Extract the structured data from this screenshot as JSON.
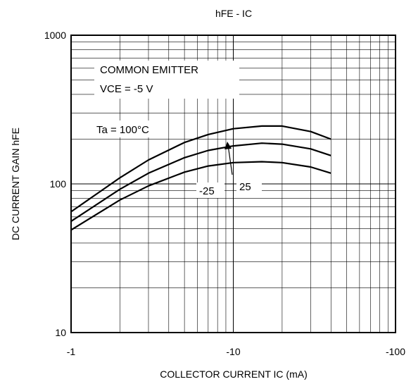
{
  "chart_data": {
    "type": "line",
    "title": "hFE - IC",
    "xlabel": "COLLECTOR CURRENT   IC (mA)",
    "ylabel": "DC CURRENT GAIN   hFE",
    "xscale": "log",
    "yscale": "log",
    "xlim": [
      -1,
      -100
    ],
    "ylim": [
      10,
      1000
    ],
    "x_ticks": [
      "-1",
      "-10",
      "-100"
    ],
    "y_ticks": [
      "10",
      "100",
      "1000"
    ],
    "grid": true,
    "annotations": [
      "COMMON EMITTER",
      "VCE = -5 V"
    ],
    "series": [
      {
        "name": "Ta = 100°C",
        "x": [
          -1,
          -2,
          -3,
          -5,
          -7,
          -10,
          -15,
          -20,
          -30,
          -40
        ],
        "y": [
          65,
          110,
          145,
          190,
          215,
          235,
          245,
          245,
          225,
          200
        ]
      },
      {
        "name": "25",
        "x": [
          -1,
          -2,
          -3,
          -5,
          -7,
          -10,
          -15,
          -20,
          -30,
          -40
        ],
        "y": [
          56,
          92,
          118,
          150,
          168,
          180,
          188,
          185,
          172,
          155
        ]
      },
      {
        "name": "-25",
        "x": [
          -1,
          -2,
          -3,
          -5,
          -7,
          -10,
          -15,
          -20,
          -30,
          -40
        ],
        "y": [
          49,
          78,
          97,
          120,
          132,
          139,
          141,
          139,
          130,
          118
        ]
      }
    ]
  }
}
